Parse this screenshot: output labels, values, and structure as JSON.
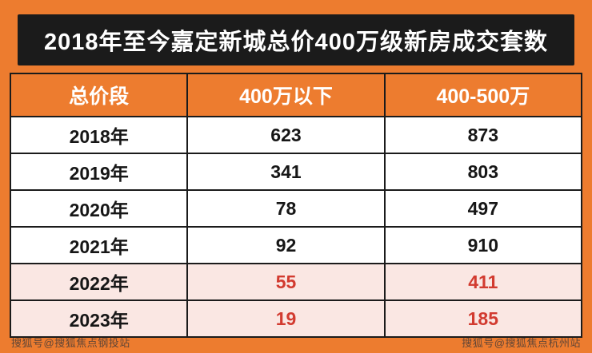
{
  "title": "2018年至今嘉定新城总价400万级新房成交套数",
  "table": {
    "headers": [
      "总价段",
      "400万以下",
      "400-500万"
    ],
    "rows": [
      [
        "2018年",
        "623",
        "873"
      ],
      [
        "2019年",
        "341",
        "803"
      ],
      [
        "2020年",
        "78",
        "497"
      ],
      [
        "2021年",
        "92",
        "910"
      ],
      [
        "2022年",
        "55",
        "411"
      ],
      [
        "2023年",
        "19",
        "185"
      ]
    ]
  },
  "watermarks": {
    "left": "搜狐号@搜狐焦点钢投站",
    "right": "搜狐号@搜狐焦点杭州站"
  },
  "colors": {
    "frame_orange": "#ED7C2F",
    "title_black": "#1B1B1B",
    "highlight_pink": "#FAE7E3",
    "highlight_red": "#D23B30"
  },
  "chart_data": {
    "type": "table",
    "title": "2018年至今嘉定新城总价400万级新房成交套数",
    "columns": [
      "总价段",
      "400万以下",
      "400-500万"
    ],
    "rows": [
      [
        "2018年",
        623,
        873
      ],
      [
        "2019年",
        341,
        803
      ],
      [
        "2020年",
        78,
        497
      ],
      [
        "2021年",
        92,
        910
      ],
      [
        "2022年",
        55,
        411
      ],
      [
        "2023年",
        19,
        185
      ]
    ],
    "highlighted_rows": [
      "2022年",
      "2023年"
    ],
    "notes": "last two rows shown with pink background and red values"
  }
}
